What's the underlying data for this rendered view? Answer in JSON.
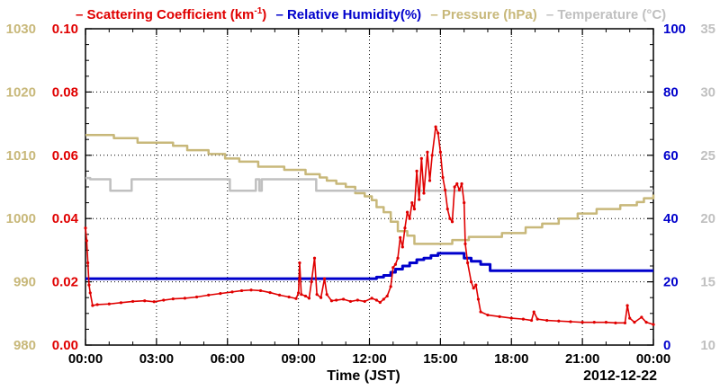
{
  "chart_data": {
    "type": "line",
    "xlabel": "Time (JST)",
    "date_label": "2012-12-22",
    "x_ticks": [
      "00:00",
      "03:00",
      "06:00",
      "09:00",
      "12:00",
      "15:00",
      "18:00",
      "21:00",
      "00:00"
    ],
    "xlim_hours": [
      0,
      24
    ],
    "grid": true,
    "axes": {
      "pressure": {
        "ticks": [
          "980",
          "990",
          "1000",
          "1010",
          "1020",
          "1030"
        ],
        "range": [
          980,
          1030
        ],
        "color": "#c8b87a"
      },
      "scattering": {
        "ticks": [
          "0.00",
          "0.02",
          "0.04",
          "0.06",
          "0.08",
          "0.10"
        ],
        "range": [
          0,
          0.1
        ],
        "color": "#e00000"
      },
      "humidity": {
        "ticks": [
          "0",
          "20",
          "40",
          "60",
          "80",
          "100"
        ],
        "range": [
          0,
          100
        ],
        "color": "#0000cc"
      },
      "temperature": {
        "ticks": [
          "10",
          "15",
          "20",
          "25",
          "30",
          "35"
        ],
        "range": [
          10,
          35
        ],
        "color": "#c0c0c0"
      }
    },
    "legend": {
      "scattering": {
        "prefix": "– Scattering Coefficient (km",
        "sup": "-1",
        "suffix": ")"
      },
      "humidity": "– Relative Humidity(%)",
      "pressure": "– Pressure (hPa)",
      "temperature": "– Temperature (°C)"
    },
    "series": [
      {
        "key": "pressure",
        "name": "Pressure (hPa)",
        "axis": "pressure",
        "color": "#c8b87a",
        "step": true,
        "points": [
          [
            0,
            1013.2
          ],
          [
            1.2,
            1012.7
          ],
          [
            2.2,
            1012
          ],
          [
            3.7,
            1011.5
          ],
          [
            4.3,
            1010.8
          ],
          [
            5.2,
            1010.2
          ],
          [
            5.9,
            1009.5
          ],
          [
            6.5,
            1009
          ],
          [
            7.3,
            1008.2
          ],
          [
            8.4,
            1007.7
          ],
          [
            9.3,
            1007
          ],
          [
            9.9,
            1006.5
          ],
          [
            10.2,
            1006
          ],
          [
            10.6,
            1005.5
          ],
          [
            11,
            1005
          ],
          [
            11.4,
            1004
          ],
          [
            11.8,
            1003.5
          ],
          [
            12.1,
            1002.9
          ],
          [
            12.3,
            1001.8
          ],
          [
            12.6,
            1001
          ],
          [
            12.9,
            999.5
          ],
          [
            13.2,
            998
          ],
          [
            13.6,
            997.3
          ],
          [
            13.9,
            996
          ],
          [
            15,
            996
          ],
          [
            15.5,
            996.6
          ],
          [
            16.2,
            997.1
          ],
          [
            17.6,
            997.7
          ],
          [
            18.6,
            998.6
          ],
          [
            19.3,
            999.2
          ],
          [
            20,
            1000
          ],
          [
            20.8,
            1000.8
          ],
          [
            21.6,
            1001.5
          ],
          [
            22.6,
            1002.1
          ],
          [
            23.3,
            1002.6
          ],
          [
            23.6,
            1003.2
          ],
          [
            24,
            1003.8
          ]
        ]
      },
      {
        "key": "temperature",
        "name": "Temperature (°C)",
        "axis": "temperature",
        "color": "#c0c0c0",
        "step": true,
        "points": [
          [
            0,
            23.2
          ],
          [
            0.2,
            23.1
          ],
          [
            1.05,
            22.2
          ],
          [
            1.95,
            23.1
          ],
          [
            5.95,
            23.1
          ],
          [
            6.1,
            22.2
          ],
          [
            7.1,
            22.2
          ],
          [
            7.2,
            23.1
          ],
          [
            7.35,
            22.2
          ],
          [
            7.45,
            23.1
          ],
          [
            9.6,
            23.1
          ],
          [
            9.75,
            22.2
          ],
          [
            24,
            22.2
          ]
        ]
      },
      {
        "key": "humidity",
        "name": "Relative Humidity(%)",
        "axis": "humidity",
        "color": "#0000cc",
        "step": true,
        "points": [
          [
            0,
            21
          ],
          [
            12,
            21
          ],
          [
            12.3,
            21.5
          ],
          [
            12.6,
            22
          ],
          [
            12.9,
            23
          ],
          [
            13.1,
            24
          ],
          [
            13.4,
            25
          ],
          [
            13.7,
            26
          ],
          [
            14,
            27
          ],
          [
            14.3,
            27.5
          ],
          [
            14.6,
            28.3
          ],
          [
            14.9,
            29
          ],
          [
            15.8,
            29
          ],
          [
            16,
            27.5
          ],
          [
            16.3,
            26.5
          ],
          [
            16.7,
            25.5
          ],
          [
            17.1,
            23.5
          ],
          [
            24,
            23.5
          ]
        ]
      },
      {
        "key": "scattering",
        "name": "Scattering Coefficient (km-1)",
        "axis": "scattering",
        "color": "#e00000",
        "step": false,
        "points": [
          [
            0,
            0.037
          ],
          [
            0.05,
            0.033
          ],
          [
            0.1,
            0.026
          ],
          [
            0.15,
            0.019
          ],
          [
            0.2,
            0.0165
          ],
          [
            0.3,
            0.0125
          ],
          [
            0.5,
            0.0128
          ],
          [
            1,
            0.013
          ],
          [
            1.5,
            0.0134
          ],
          [
            2,
            0.0138
          ],
          [
            2.5,
            0.014
          ],
          [
            2.9,
            0.0137
          ],
          [
            3.3,
            0.0142
          ],
          [
            3.7,
            0.0146
          ],
          [
            4.2,
            0.0148
          ],
          [
            4.7,
            0.0152
          ],
          [
            5.2,
            0.0158
          ],
          [
            5.7,
            0.0163
          ],
          [
            6.2,
            0.0168
          ],
          [
            6.6,
            0.0172
          ],
          [
            7,
            0.0174
          ],
          [
            7.4,
            0.0172
          ],
          [
            7.8,
            0.0166
          ],
          [
            8.2,
            0.0158
          ],
          [
            8.6,
            0.0152
          ],
          [
            8.9,
            0.0147
          ],
          [
            9,
            0.0165
          ],
          [
            9.05,
            0.026
          ],
          [
            9.12,
            0.016
          ],
          [
            9.3,
            0.0155
          ],
          [
            9.45,
            0.0148
          ],
          [
            9.55,
            0.02
          ],
          [
            9.68,
            0.0275
          ],
          [
            9.78,
            0.016
          ],
          [
            9.95,
            0.015
          ],
          [
            10.1,
            0.021
          ],
          [
            10.2,
            0.016
          ],
          [
            10.4,
            0.014
          ],
          [
            10.6,
            0.0142
          ],
          [
            10.9,
            0.0145
          ],
          [
            11.2,
            0.0138
          ],
          [
            11.5,
            0.0142
          ],
          [
            11.8,
            0.0138
          ],
          [
            12.1,
            0.0148
          ],
          [
            12.3,
            0.0142
          ],
          [
            12.45,
            0.0135
          ],
          [
            12.6,
            0.0145
          ],
          [
            12.75,
            0.0155
          ],
          [
            12.9,
            0.0185
          ],
          [
            13,
            0.0245
          ],
          [
            13.1,
            0.0255
          ],
          [
            13.2,
            0.0275
          ],
          [
            13.3,
            0.034
          ],
          [
            13.4,
            0.031
          ],
          [
            13.5,
            0.037
          ],
          [
            13.6,
            0.042
          ],
          [
            13.7,
            0.04
          ],
          [
            13.8,
            0.045
          ],
          [
            13.9,
            0.043
          ],
          [
            14,
            0.055
          ],
          [
            14.1,
            0.046
          ],
          [
            14.2,
            0.059
          ],
          [
            14.3,
            0.048
          ],
          [
            14.45,
            0.061
          ],
          [
            14.55,
            0.052
          ],
          [
            14.65,
            0.06
          ],
          [
            14.8,
            0.069
          ],
          [
            14.9,
            0.067
          ],
          [
            15,
            0.061
          ],
          [
            15.1,
            0.053
          ],
          [
            15.2,
            0.049
          ],
          [
            15.3,
            0.043
          ],
          [
            15.4,
            0.04
          ],
          [
            15.5,
            0.039
          ],
          [
            15.6,
            0.05
          ],
          [
            15.7,
            0.051
          ],
          [
            15.8,
            0.049
          ],
          [
            15.9,
            0.051
          ],
          [
            16,
            0.045
          ],
          [
            16.05,
            0.032
          ],
          [
            16.15,
            0.026
          ],
          [
            16.3,
            0.02
          ],
          [
            16.4,
            0.018
          ],
          [
            16.5,
            0.019
          ],
          [
            16.6,
            0.0145
          ],
          [
            16.7,
            0.0105
          ],
          [
            17,
            0.0095
          ],
          [
            17.5,
            0.009
          ],
          [
            18,
            0.0085
          ],
          [
            18.5,
            0.0082
          ],
          [
            18.85,
            0.0078
          ],
          [
            18.95,
            0.0105
          ],
          [
            19.1,
            0.0082
          ],
          [
            19.5,
            0.0078
          ],
          [
            20,
            0.0076
          ],
          [
            20.5,
            0.0074
          ],
          [
            21,
            0.0072
          ],
          [
            21.5,
            0.0072
          ],
          [
            22,
            0.0072
          ],
          [
            22.4,
            0.007
          ],
          [
            22.8,
            0.007
          ],
          [
            22.9,
            0.0125
          ],
          [
            23,
            0.0085
          ],
          [
            23.2,
            0.0072
          ],
          [
            23.5,
            0.0088
          ],
          [
            23.7,
            0.0072
          ],
          [
            24,
            0.0065
          ]
        ]
      }
    ]
  }
}
